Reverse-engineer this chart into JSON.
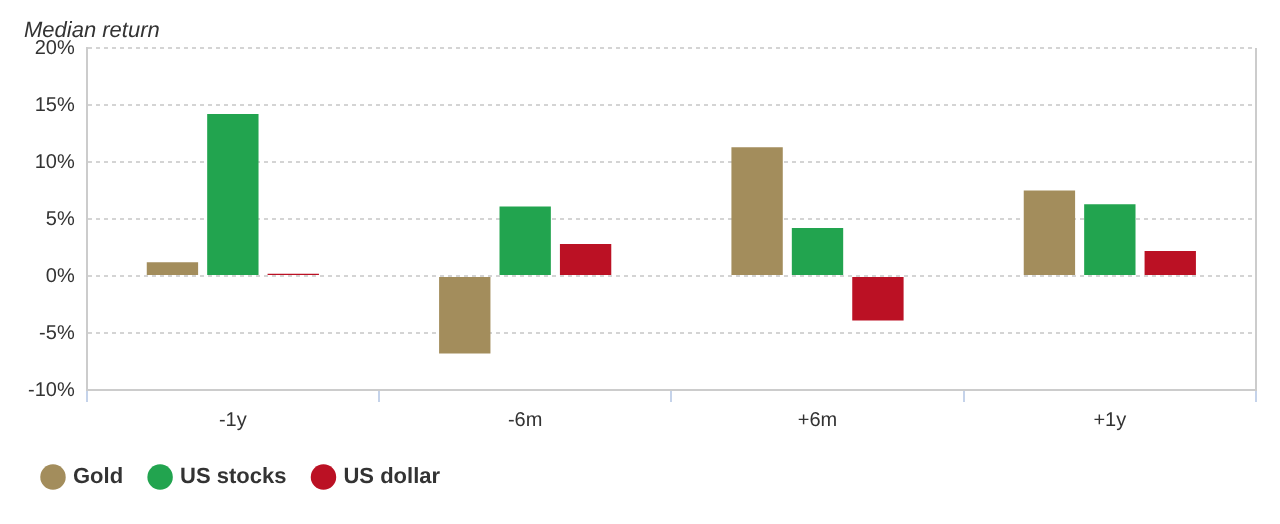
{
  "chart_data": {
    "type": "bar",
    "ylabel": "Median return",
    "categories": [
      "-1y",
      "-6m",
      "+6m",
      "+1y"
    ],
    "series": [
      {
        "name": "Gold",
        "color": "#a38d5c",
        "values": [
          1.2,
          -6.8,
          11.3,
          7.5
        ]
      },
      {
        "name": "US stocks",
        "color": "#22a44f",
        "values": [
          14.2,
          6.1,
          4.2,
          6.3
        ]
      },
      {
        "name": "US dollar",
        "color": "#bb1124",
        "values": [
          0.2,
          2.8,
          -3.9,
          2.2
        ]
      }
    ],
    "ylim": [
      -10,
      20
    ],
    "yticks": [
      {
        "value": -10,
        "label": "-10%"
      },
      {
        "value": -5,
        "label": "-5%"
      },
      {
        "value": 0,
        "label": "0%"
      },
      {
        "value": 5,
        "label": "5%"
      },
      {
        "value": 10,
        "label": "10%"
      },
      {
        "value": 15,
        "label": "15%"
      },
      {
        "value": 20,
        "label": "20%"
      }
    ],
    "grid": "y",
    "legend": "bottom left"
  }
}
